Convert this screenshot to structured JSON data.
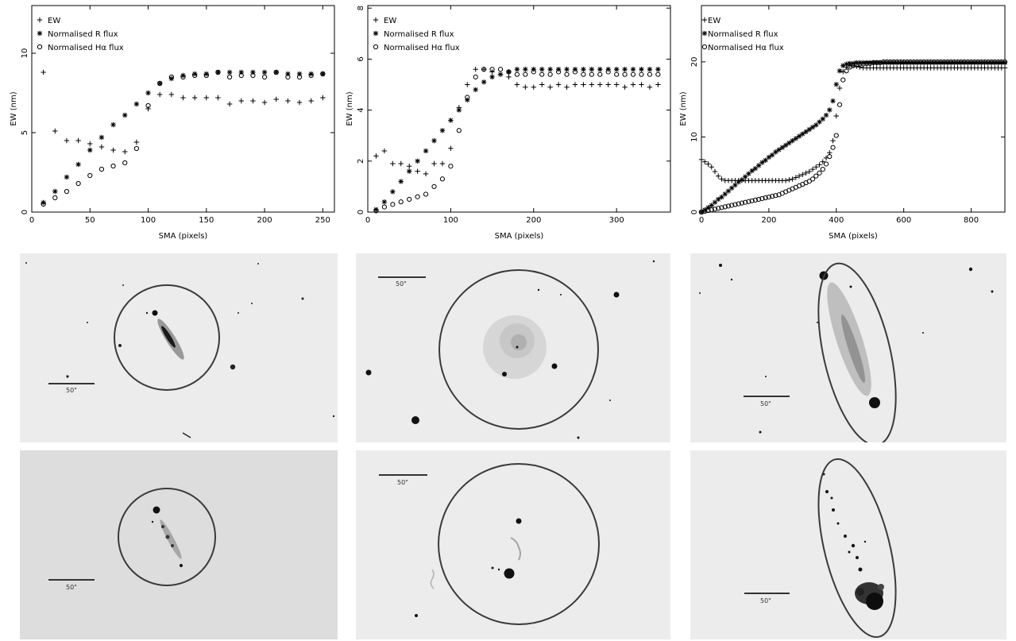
{
  "chart_data": [
    {
      "type": "scatter",
      "xlabel": "SMA (pixels)",
      "ylabel": "EW (nm)",
      "xlim": [
        0,
        260
      ],
      "ylim": [
        0,
        13
      ],
      "xticks": [
        0,
        50,
        100,
        150,
        200,
        250
      ],
      "yticks": [
        0,
        5,
        10
      ],
      "legend_position": "top-left",
      "series": [
        {
          "name": "EW",
          "marker": "+",
          "x": [
            10,
            20,
            30,
            40,
            50,
            60,
            70,
            80,
            90,
            100,
            110,
            120,
            130,
            140,
            150,
            160,
            170,
            180,
            190,
            200,
            210,
            220,
            230,
            240,
            250
          ],
          "y": [
            8.8,
            5.1,
            4.5,
            4.5,
            4.3,
            4.1,
            3.9,
            3.8,
            4.4,
            6.5,
            7.4,
            7.4,
            7.2,
            7.2,
            7.2,
            7.2,
            6.8,
            7.0,
            7.0,
            6.9,
            7.1,
            7.0,
            6.9,
            7.0,
            7.2
          ]
        },
        {
          "name": "Normalised R flux",
          "marker": "*",
          "x": [
            10,
            20,
            30,
            40,
            50,
            60,
            70,
            80,
            90,
            100,
            110,
            120,
            130,
            140,
            150,
            160,
            170,
            180,
            190,
            200,
            210,
            220,
            230,
            240,
            250
          ],
          "y": [
            0.6,
            1.3,
            2.2,
            3.0,
            3.9,
            4.7,
            5.5,
            6.1,
            6.8,
            7.5,
            8.1,
            8.4,
            8.6,
            8.7,
            8.7,
            8.8,
            8.8,
            8.8,
            8.8,
            8.8,
            8.8,
            8.7,
            8.7,
            8.7,
            8.7
          ]
        },
        {
          "name": "Normalised Hα flux",
          "marker": "o",
          "x": [
            10,
            20,
            30,
            40,
            50,
            60,
            70,
            80,
            90,
            100,
            110,
            120,
            130,
            140,
            150,
            160,
            170,
            180,
            190,
            200,
            210,
            220,
            230,
            240,
            250
          ],
          "y": [
            0.5,
            0.9,
            1.3,
            1.8,
            2.3,
            2.7,
            2.9,
            3.1,
            4.0,
            6.7,
            8.1,
            8.5,
            8.5,
            8.6,
            8.6,
            8.8,
            8.5,
            8.6,
            8.6,
            8.5,
            8.8,
            8.5,
            8.5,
            8.6,
            8.7
          ]
        }
      ]
    },
    {
      "type": "scatter",
      "xlabel": "SMA (pixels)",
      "ylabel": "EW (nm)",
      "xlim": [
        0,
        365
      ],
      "ylim": [
        0,
        8.1
      ],
      "xticks": [
        0,
        100,
        200,
        300
      ],
      "yticks": [
        0,
        2,
        4,
        6,
        8
      ],
      "legend_position": "top-left",
      "series": [
        {
          "name": "EW",
          "marker": "+",
          "x": [
            10,
            20,
            30,
            40,
            50,
            60,
            70,
            80,
            90,
            100,
            110,
            120,
            130,
            140,
            150,
            160,
            170,
            180,
            190,
            200,
            210,
            220,
            230,
            240,
            250,
            260,
            270,
            280,
            290,
            300,
            310,
            320,
            330,
            340,
            350
          ],
          "y": [
            2.2,
            2.4,
            1.9,
            1.9,
            1.8,
            1.6,
            1.5,
            1.9,
            1.9,
            2.5,
            4.1,
            5.0,
            5.6,
            5.6,
            5.5,
            5.4,
            5.3,
            5.0,
            4.9,
            4.9,
            5.0,
            4.9,
            5.0,
            4.9,
            5.0,
            5.0,
            5.0,
            5.0,
            5.0,
            5.0,
            4.9,
            5.0,
            5.0,
            4.9,
            5.0
          ]
        },
        {
          "name": "Normalised R flux",
          "marker": "*",
          "x": [
            10,
            20,
            30,
            40,
            50,
            60,
            70,
            80,
            90,
            100,
            110,
            120,
            130,
            140,
            150,
            160,
            170,
            180,
            190,
            200,
            210,
            220,
            230,
            240,
            250,
            260,
            270,
            280,
            290,
            300,
            310,
            320,
            330,
            340,
            350
          ],
          "y": [
            0.1,
            0.4,
            0.8,
            1.2,
            1.6,
            2.0,
            2.4,
            2.8,
            3.2,
            3.6,
            4.0,
            4.4,
            4.8,
            5.1,
            5.3,
            5.4,
            5.5,
            5.6,
            5.6,
            5.6,
            5.6,
            5.6,
            5.6,
            5.6,
            5.6,
            5.6,
            5.6,
            5.6,
            5.6,
            5.6,
            5.6,
            5.6,
            5.6,
            5.6,
            5.6
          ]
        },
        {
          "name": "Normalised Hα flux",
          "marker": "o",
          "x": [
            10,
            20,
            30,
            40,
            50,
            60,
            70,
            80,
            90,
            100,
            110,
            120,
            130,
            140,
            150,
            160,
            170,
            180,
            190,
            200,
            210,
            220,
            230,
            240,
            250,
            260,
            270,
            280,
            290,
            300,
            310,
            320,
            330,
            340,
            350
          ],
          "y": [
            0.05,
            0.2,
            0.3,
            0.4,
            0.5,
            0.6,
            0.7,
            1.0,
            1.3,
            1.8,
            3.2,
            4.5,
            5.3,
            5.6,
            5.6,
            5.6,
            5.5,
            5.4,
            5.4,
            5.5,
            5.4,
            5.4,
            5.5,
            5.4,
            5.5,
            5.4,
            5.4,
            5.4,
            5.5,
            5.4,
            5.4,
            5.4,
            5.4,
            5.4,
            5.4
          ]
        }
      ]
    },
    {
      "type": "scatter",
      "xlabel": "SMA (pixels)",
      "ylabel": "EW (nm)",
      "xlim": [
        0,
        900
      ],
      "ylim": [
        0,
        27.5
      ],
      "xticks": [
        0,
        200,
        400,
        600,
        800
      ],
      "yticks": [
        0,
        10,
        20
      ],
      "legend_position": "top-left",
      "series": [
        {
          "name": "EW",
          "marker": "+",
          "x": [
            0,
            10,
            20,
            30,
            40,
            50,
            60,
            70,
            80,
            90,
            100,
            110,
            120,
            130,
            140,
            150,
            160,
            170,
            180,
            190,
            200,
            210,
            220,
            230,
            240,
            250,
            260,
            270,
            280,
            290,
            300,
            310,
            320,
            330,
            340,
            350,
            360,
            370,
            380,
            390,
            400,
            410,
            420,
            430,
            440,
            450,
            460,
            470,
            480,
            490,
            500,
            510,
            520,
            530,
            540,
            550,
            560,
            570,
            580,
            590,
            600,
            610,
            620,
            630,
            640,
            650,
            660,
            670,
            680,
            690,
            700,
            710,
            720,
            730,
            740,
            750,
            760,
            770,
            780,
            790,
            800,
            810,
            820,
            830,
            840,
            850,
            860,
            870,
            880,
            890,
            900
          ],
          "y": [
            7.0,
            6.7,
            6.4,
            6.0,
            5.4,
            4.8,
            4.4,
            4.2,
            4.2,
            4.2,
            4.2,
            4.2,
            4.2,
            4.2,
            4.2,
            4.2,
            4.2,
            4.2,
            4.2,
            4.2,
            4.2,
            4.2,
            4.2,
            4.2,
            4.2,
            4.2,
            4.3,
            4.4,
            4.6,
            4.8,
            5.0,
            5.2,
            5.4,
            5.7,
            6.0,
            6.3,
            6.7,
            7.2,
            7.9,
            9.5,
            12.8,
            16.5,
            18.7,
            19.3,
            19.5,
            19.5,
            19.4,
            19.3,
            19.2,
            19.2,
            19.2,
            19.2,
            19.2,
            19.2,
            19.2,
            19.2,
            19.2,
            19.2,
            19.2,
            19.2,
            19.2,
            19.2,
            19.2,
            19.2,
            19.2,
            19.2,
            19.2,
            19.2,
            19.2,
            19.2,
            19.2,
            19.2,
            19.2,
            19.2,
            19.2,
            19.2,
            19.2,
            19.2,
            19.2,
            19.2,
            19.2,
            19.2,
            19.2,
            19.2,
            19.2,
            19.2,
            19.2,
            19.2,
            19.2,
            19.2,
            19.2
          ]
        },
        {
          "name": "Normalised R flux",
          "marker": "*",
          "x": [
            0,
            10,
            20,
            30,
            40,
            50,
            60,
            70,
            80,
            90,
            100,
            110,
            120,
            130,
            140,
            150,
            160,
            170,
            180,
            190,
            200,
            210,
            220,
            230,
            240,
            250,
            260,
            270,
            280,
            290,
            300,
            310,
            320,
            330,
            340,
            350,
            360,
            370,
            380,
            390,
            400,
            410,
            420,
            430,
            440,
            450,
            460,
            470,
            480,
            490,
            500,
            510,
            520,
            530,
            540,
            550,
            560,
            570,
            580,
            590,
            600,
            610,
            620,
            630,
            640,
            650,
            660,
            670,
            680,
            690,
            700,
            710,
            720,
            730,
            740,
            750,
            760,
            770,
            780,
            790,
            800,
            810,
            820,
            830,
            840,
            850,
            860,
            870,
            880,
            890,
            900
          ],
          "y": [
            0.0,
            0.3,
            0.6,
            0.9,
            1.3,
            1.7,
            2.0,
            2.4,
            2.8,
            3.2,
            3.6,
            4.0,
            4.3,
            4.7,
            5.1,
            5.5,
            5.8,
            6.2,
            6.6,
            6.9,
            7.3,
            7.6,
            8.0,
            8.3,
            8.6,
            8.9,
            9.2,
            9.5,
            9.8,
            10.1,
            10.4,
            10.7,
            11.0,
            11.3,
            11.6,
            12.0,
            12.4,
            12.9,
            13.6,
            14.8,
            17.0,
            18.8,
            19.5,
            19.7,
            19.8,
            19.8,
            19.9,
            19.9,
            19.9,
            19.9,
            19.9,
            19.9,
            19.9,
            19.9,
            19.9,
            19.9,
            19.9,
            19.9,
            19.9,
            19.9,
            19.9,
            19.9,
            19.9,
            19.9,
            19.9,
            19.9,
            19.9,
            19.9,
            19.9,
            19.9,
            19.9,
            19.9,
            19.9,
            19.9,
            19.9,
            19.9,
            19.9,
            19.9,
            19.9,
            19.9,
            19.9,
            19.9,
            19.9,
            19.9,
            19.9,
            19.9,
            19.9,
            19.9,
            19.9,
            19.9,
            19.9
          ]
        },
        {
          "name": "Normalised Hα flux",
          "marker": "o",
          "x": [
            0,
            10,
            20,
            30,
            40,
            50,
            60,
            70,
            80,
            90,
            100,
            110,
            120,
            130,
            140,
            150,
            160,
            170,
            180,
            190,
            200,
            210,
            220,
            230,
            240,
            250,
            260,
            270,
            280,
            290,
            300,
            310,
            320,
            330,
            340,
            350,
            360,
            370,
            380,
            390,
            400,
            410,
            420,
            430,
            440,
            450,
            460,
            470,
            480,
            490,
            500,
            510,
            520,
            530,
            540,
            550,
            560,
            570,
            580,
            590,
            600,
            610,
            620,
            630,
            640,
            650,
            660,
            670,
            680,
            690,
            700,
            710,
            720,
            730,
            740,
            750,
            760,
            770,
            780,
            790,
            800,
            810,
            820,
            830,
            840,
            850,
            860,
            870,
            880,
            890,
            900
          ],
          "y": [
            0.0,
            0.1,
            0.2,
            0.3,
            0.4,
            0.5,
            0.6,
            0.7,
            0.8,
            0.9,
            1.0,
            1.1,
            1.2,
            1.3,
            1.4,
            1.5,
            1.6,
            1.7,
            1.8,
            1.9,
            2.0,
            2.1,
            2.2,
            2.3,
            2.5,
            2.7,
            2.9,
            3.1,
            3.3,
            3.5,
            3.7,
            3.9,
            4.1,
            4.4,
            4.8,
            5.2,
            5.7,
            6.4,
            7.4,
            8.6,
            10.2,
            14.3,
            17.6,
            18.8,
            19.3,
            19.5,
            19.6,
            19.7,
            19.7,
            19.8,
            19.8,
            19.9,
            19.9,
            19.9,
            20.0,
            20.0,
            20.0,
            20.0,
            20.0,
            20.0,
            20.0,
            20.0,
            20.0,
            20.0,
            20.0,
            20.0,
            20.0,
            20.0,
            20.0,
            20.0,
            20.0,
            20.0,
            20.0,
            20.0,
            20.0,
            20.0,
            20.0,
            20.0,
            20.0,
            20.0,
            20.0,
            20.0,
            20.0,
            20.0,
            20.0,
            20.0,
            20.0,
            20.0,
            20.0,
            20.0,
            20.0
          ]
        }
      ]
    }
  ],
  "images": {
    "scale_label": "50\"",
    "background_color": "#ececec",
    "contour_color": "#3a3a3a",
    "feature_color": "#1a1a1a"
  }
}
